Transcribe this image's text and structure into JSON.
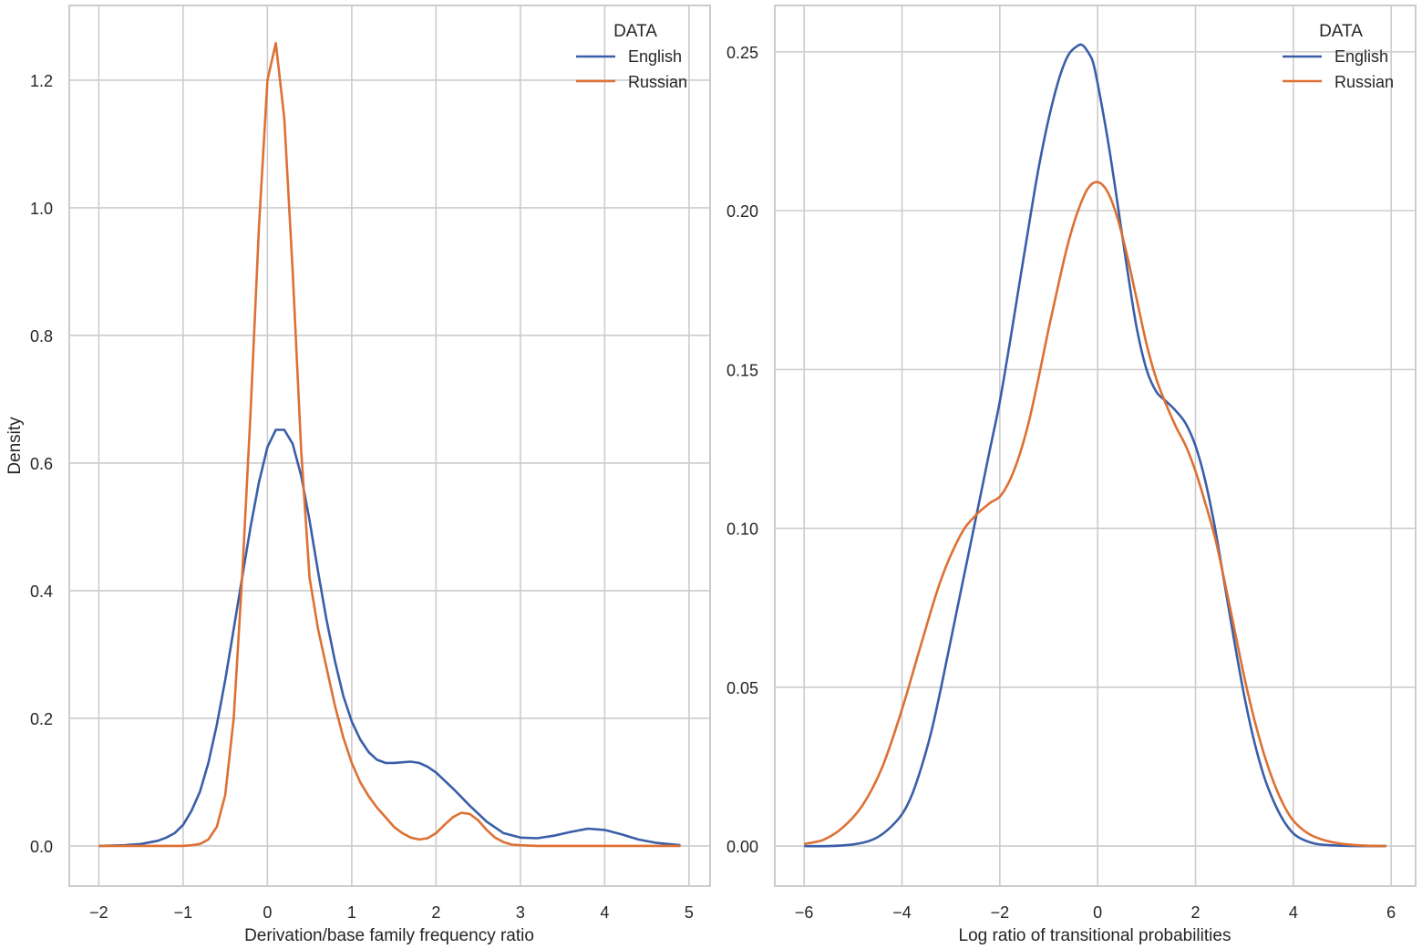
{
  "colors": {
    "english": "#3a5ea8",
    "russian": "#dd7033",
    "grid": "#cccccc",
    "text": "#262626"
  },
  "chart_data": [
    {
      "type": "line",
      "title": "",
      "xlabel": "Derivation/base family frequency ratio",
      "ylabel": "Density",
      "xlim": [
        -2.35,
        5.25
      ],
      "ylim": [
        -0.063,
        1.317
      ],
      "xticks": [
        -2,
        -1,
        0,
        1,
        2,
        3,
        4,
        5
      ],
      "xtick_labels": [
        "−2",
        "−1",
        "0",
        "1",
        "2",
        "3",
        "4",
        "5"
      ],
      "yticks": [
        0.0,
        0.2,
        0.4,
        0.6,
        0.8,
        1.0,
        1.2
      ],
      "ytick_labels": [
        "0.0",
        "0.2",
        "0.4",
        "0.6",
        "0.8",
        "1.0",
        "1.2"
      ],
      "grid": true,
      "legend": {
        "title": "DATA",
        "position": "upper right",
        "entries": [
          "English",
          "Russian"
        ]
      },
      "series": [
        {
          "name": "English",
          "x": [
            -2.0,
            -1.7,
            -1.5,
            -1.3,
            -1.2,
            -1.1,
            -1.0,
            -0.9,
            -0.8,
            -0.7,
            -0.6,
            -0.5,
            -0.4,
            -0.3,
            -0.2,
            -0.1,
            0.0,
            0.1,
            0.2,
            0.3,
            0.4,
            0.5,
            0.6,
            0.7,
            0.8,
            0.9,
            1.0,
            1.1,
            1.2,
            1.3,
            1.4,
            1.5,
            1.6,
            1.7,
            1.8,
            1.9,
            2.0,
            2.2,
            2.4,
            2.6,
            2.8,
            3.0,
            3.2,
            3.4,
            3.6,
            3.8,
            4.0,
            4.2,
            4.4,
            4.6,
            4.9
          ],
          "values": [
            0.0,
            0.001,
            0.003,
            0.008,
            0.013,
            0.02,
            0.033,
            0.055,
            0.085,
            0.13,
            0.19,
            0.26,
            0.34,
            0.42,
            0.5,
            0.57,
            0.625,
            0.652,
            0.652,
            0.63,
            0.58,
            0.51,
            0.43,
            0.355,
            0.29,
            0.235,
            0.195,
            0.167,
            0.147,
            0.135,
            0.13,
            0.13,
            0.131,
            0.132,
            0.13,
            0.124,
            0.115,
            0.09,
            0.063,
            0.038,
            0.02,
            0.013,
            0.012,
            0.016,
            0.022,
            0.027,
            0.025,
            0.018,
            0.01,
            0.005,
            0.001
          ]
        },
        {
          "name": "Russian",
          "x": [
            -2.0,
            -1.5,
            -1.0,
            -0.9,
            -0.8,
            -0.7,
            -0.6,
            -0.5,
            -0.4,
            -0.3,
            -0.2,
            -0.1,
            0.0,
            0.1,
            0.2,
            0.3,
            0.4,
            0.5,
            0.6,
            0.7,
            0.8,
            0.9,
            1.0,
            1.1,
            1.2,
            1.3,
            1.4,
            1.5,
            1.6,
            1.7,
            1.8,
            1.9,
            2.0,
            2.1,
            2.2,
            2.3,
            2.4,
            2.5,
            2.6,
            2.7,
            2.8,
            2.9,
            3.0,
            3.2,
            3.5,
            4.0,
            4.5,
            4.9
          ],
          "values": [
            0.0,
            0.0,
            0.0,
            0.001,
            0.003,
            0.01,
            0.03,
            0.08,
            0.2,
            0.42,
            0.68,
            0.97,
            1.2,
            1.258,
            1.14,
            0.9,
            0.62,
            0.42,
            0.34,
            0.28,
            0.22,
            0.17,
            0.13,
            0.1,
            0.078,
            0.06,
            0.045,
            0.03,
            0.02,
            0.013,
            0.01,
            0.012,
            0.02,
            0.033,
            0.045,
            0.052,
            0.05,
            0.04,
            0.025,
            0.013,
            0.006,
            0.002,
            0.001,
            0.0,
            0.0,
            0.0,
            0.0,
            0.0
          ]
        }
      ]
    },
    {
      "type": "line",
      "title": "",
      "xlabel": "Log ratio of transitional probabilities",
      "ylabel": "",
      "xlim": [
        -6.6,
        6.5
      ],
      "ylim": [
        -0.0126,
        0.2646
      ],
      "xticks": [
        -6,
        -4,
        -2,
        0,
        2,
        4,
        6
      ],
      "xtick_labels": [
        "−6",
        "−4",
        "−2",
        "0",
        "2",
        "4",
        "6"
      ],
      "yticks": [
        0.0,
        0.05,
        0.1,
        0.15,
        0.2,
        0.25
      ],
      "ytick_labels": [
        "0.00",
        "0.05",
        "0.10",
        "0.15",
        "0.20",
        "0.25"
      ],
      "grid": true,
      "legend": {
        "title": "DATA",
        "position": "upper right",
        "entries": [
          "English",
          "Russian"
        ]
      },
      "series": [
        {
          "name": "English",
          "x": [
            -6.0,
            -5.5,
            -5.0,
            -4.6,
            -4.3,
            -4.0,
            -3.8,
            -3.6,
            -3.4,
            -3.2,
            -3.0,
            -2.8,
            -2.6,
            -2.4,
            -2.2,
            -2.0,
            -1.8,
            -1.6,
            -1.4,
            -1.2,
            -1.0,
            -0.8,
            -0.6,
            -0.4,
            -0.3,
            -0.2,
            -0.1,
            0.0,
            0.2,
            0.4,
            0.6,
            0.8,
            1.0,
            1.2,
            1.4,
            1.6,
            1.8,
            2.0,
            2.2,
            2.4,
            2.6,
            2.8,
            3.0,
            3.2,
            3.4,
            3.6,
            3.8,
            4.0,
            4.2,
            4.5,
            5.0,
            5.5,
            5.9
          ],
          "values": [
            0.0,
            0.0,
            0.0005,
            0.002,
            0.005,
            0.01,
            0.016,
            0.025,
            0.036,
            0.05,
            0.065,
            0.08,
            0.095,
            0.11,
            0.125,
            0.14,
            0.158,
            0.177,
            0.196,
            0.214,
            0.229,
            0.241,
            0.249,
            0.252,
            0.252,
            0.25,
            0.247,
            0.24,
            0.223,
            0.203,
            0.182,
            0.163,
            0.15,
            0.143,
            0.14,
            0.137,
            0.133,
            0.126,
            0.115,
            0.1,
            0.082,
            0.064,
            0.047,
            0.033,
            0.022,
            0.014,
            0.008,
            0.004,
            0.002,
            0.0006,
            0.0001,
            0.0,
            0.0
          ]
        },
        {
          "name": "Russian",
          "x": [
            -6.0,
            -5.6,
            -5.2,
            -4.8,
            -4.4,
            -4.0,
            -3.6,
            -3.2,
            -2.8,
            -2.5,
            -2.2,
            -2.0,
            -1.8,
            -1.6,
            -1.4,
            -1.2,
            -1.0,
            -0.8,
            -0.6,
            -0.4,
            -0.2,
            0.0,
            0.2,
            0.4,
            0.6,
            0.8,
            1.0,
            1.2,
            1.4,
            1.6,
            1.8,
            2.0,
            2.2,
            2.4,
            2.6,
            2.8,
            3.0,
            3.2,
            3.4,
            3.6,
            3.8,
            4.0,
            4.3,
            4.6,
            5.0,
            5.5,
            5.9
          ],
          "values": [
            0.0007,
            0.002,
            0.006,
            0.013,
            0.025,
            0.043,
            0.064,
            0.084,
            0.098,
            0.104,
            0.108,
            0.11,
            0.115,
            0.123,
            0.134,
            0.148,
            0.163,
            0.177,
            0.19,
            0.2,
            0.207,
            0.209,
            0.206,
            0.198,
            0.186,
            0.172,
            0.158,
            0.147,
            0.139,
            0.132,
            0.126,
            0.118,
            0.108,
            0.097,
            0.083,
            0.068,
            0.053,
            0.04,
            0.029,
            0.02,
            0.013,
            0.008,
            0.004,
            0.002,
            0.0007,
            0.0001,
            0.0
          ]
        }
      ]
    }
  ]
}
